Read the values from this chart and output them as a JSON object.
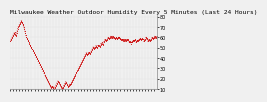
{
  "title": "Milwaukee Weather Outdoor Humidity Every 5 Minutes (Last 24 Hours)",
  "background_color": "#f0f0f0",
  "plot_bg_color": "#f0f0f0",
  "grid_color": "#cccccc",
  "line_color": "#cc0000",
  "ylim": [
    10,
    82
  ],
  "xlim": [
    0,
    287
  ],
  "ytick_values": [
    10,
    20,
    30,
    40,
    50,
    60,
    70,
    80
  ],
  "y_values": [
    56,
    57,
    58,
    59,
    60,
    61,
    62,
    63,
    64,
    65,
    63,
    61,
    62,
    64,
    66,
    68,
    70,
    71,
    72,
    73,
    74,
    75,
    76,
    75,
    74,
    73,
    72,
    70,
    68,
    66,
    64,
    62,
    60,
    59,
    58,
    57,
    56,
    55,
    54,
    53,
    52,
    51,
    50,
    49,
    48,
    47,
    46,
    45,
    44,
    43,
    42,
    41,
    40,
    39,
    38,
    37,
    36,
    35,
    34,
    33,
    32,
    31,
    30,
    29,
    28,
    27,
    26,
    25,
    24,
    23,
    22,
    21,
    20,
    19,
    18,
    17,
    16,
    15,
    14,
    13,
    12,
    11,
    12,
    13,
    12,
    11,
    10,
    11,
    12,
    13,
    14,
    15,
    16,
    17,
    18,
    17,
    16,
    15,
    14,
    13,
    12,
    11,
    10,
    11,
    12,
    13,
    14,
    15,
    16,
    17,
    16,
    15,
    14,
    13,
    12,
    13,
    14,
    15,
    14,
    15,
    16,
    17,
    18,
    19,
    20,
    21,
    22,
    23,
    24,
    25,
    26,
    27,
    28,
    29,
    30,
    31,
    32,
    33,
    34,
    35,
    36,
    37,
    38,
    39,
    40,
    41,
    42,
    43,
    44,
    45,
    44,
    43,
    44,
    45,
    46,
    45,
    44,
    45,
    46,
    47,
    48,
    49,
    50,
    51,
    50,
    49,
    50,
    51,
    52,
    51,
    50,
    51,
    52,
    53,
    52,
    51,
    52,
    53,
    54,
    55,
    54,
    53,
    54,
    55,
    56,
    57,
    58,
    57,
    56,
    57,
    58,
    59,
    60,
    59,
    58,
    59,
    60,
    61,
    60,
    59,
    60,
    61,
    60,
    59,
    60,
    59,
    58,
    59,
    60,
    59,
    58,
    59,
    60,
    59,
    60,
    59,
    58,
    57,
    58,
    57,
    58,
    57,
    56,
    57,
    58,
    57,
    56,
    57,
    58,
    57,
    58,
    57,
    56,
    55,
    56,
    55,
    54,
    55,
    56,
    55,
    56,
    57,
    56,
    57,
    58,
    57,
    56,
    55,
    56,
    57,
    56,
    57,
    58,
    57,
    58,
    59,
    58,
    57,
    58,
    59,
    58,
    57,
    56,
    57,
    58,
    59,
    60,
    59,
    58,
    57,
    56,
    57,
    58,
    57,
    56,
    57,
    58,
    59,
    60,
    59,
    58,
    59,
    60,
    61,
    60,
    59,
    60,
    61
  ],
  "marker_size": 1.2,
  "line_width": 0.6,
  "title_fontsize": 4.5,
  "tick_fontsize": 3.5
}
